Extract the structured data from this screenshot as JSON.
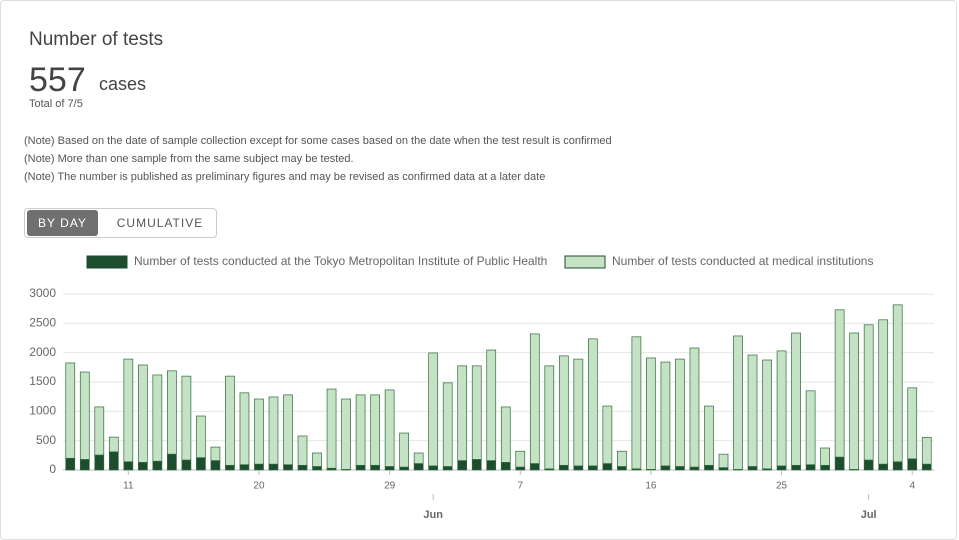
{
  "header": {
    "title": "Number of tests",
    "total": 557,
    "unit": "cases",
    "date_note": "Total of 7/5"
  },
  "notes": [
    "(Note) Based on the date of sample collection except for some cases based on the date when the test result is confirmed",
    "(Note) More than one sample from the same subject may be tested.",
    "(Note) The number is published as preliminary figures and may be revised as confirmed data at a later date"
  ],
  "toggle": [
    "BY DAY",
    "CUMULATIVE"
  ],
  "chart_data": {
    "type": "stacked_bar",
    "categories": [
      null,
      null,
      null,
      null,
      "11",
      null,
      null,
      null,
      null,
      null,
      null,
      null,
      null,
      "20",
      null,
      null,
      null,
      null,
      null,
      null,
      null,
      null,
      "29",
      null,
      null,
      null,
      null,
      null,
      null,
      null,
      null,
      "7",
      null,
      null,
      null,
      null,
      null,
      null,
      null,
      null,
      "16",
      null,
      null,
      null,
      null,
      null,
      null,
      null,
      null,
      "25",
      null,
      null,
      null,
      null,
      null,
      null,
      null,
      null,
      "4",
      null
    ],
    "months": [
      null,
      null,
      null,
      null,
      null,
      null,
      null,
      null,
      null,
      null,
      null,
      null,
      null,
      null,
      null,
      null,
      null,
      null,
      null,
      null,
      null,
      null,
      null,
      null,
      null,
      "Jun",
      null,
      null,
      null,
      null,
      null,
      null,
      null,
      null,
      null,
      null,
      null,
      null,
      null,
      null,
      null,
      null,
      null,
      null,
      null,
      null,
      null,
      null,
      null,
      null,
      null,
      null,
      null,
      null,
      null,
      "Jul",
      null,
      null,
      null,
      null
    ],
    "series": [
      {
        "name": "Number of tests conducted at the Tokyo Metropolitan Institute of Public Health",
        "color": "#1b4d2e",
        "values": [
          200,
          180,
          255,
          310,
          140,
          130,
          150,
          270,
          170,
          210,
          160,
          80,
          90,
          100,
          100,
          90,
          80,
          60,
          30,
          10,
          80,
          80,
          60,
          50,
          110,
          70,
          60,
          160,
          180,
          160,
          130,
          50,
          110,
          20,
          80,
          70,
          70,
          110,
          60,
          20,
          10,
          70,
          60,
          50,
          80,
          40,
          10,
          60,
          20,
          70,
          80,
          90,
          80,
          220,
          10,
          170,
          100,
          140,
          190,
          100
        ]
      },
      {
        "name": "Number of tests conducted at medical institutions",
        "color": "#c5e3c4",
        "values": [
          1625,
          1490,
          820,
          250,
          1750,
          1660,
          1470,
          1420,
          1430,
          710,
          230,
          1520,
          1225,
          1110,
          1145,
          1190,
          500,
          230,
          1350,
          1200,
          1200,
          1200,
          1305,
          580,
          180,
          1925,
          1425,
          1615,
          1595,
          1885,
          945,
          270,
          2210,
          1755,
          1865,
          1820,
          2165,
          980,
          260,
          2250,
          1900,
          1770,
          1830,
          2030,
          1010,
          230,
          2275,
          1900,
          1855,
          1960,
          2255,
          1260,
          295,
          2510,
          2325,
          2305,
          2460,
          2675,
          1210,
          457
        ]
      }
    ],
    "ylim": [
      0,
      3000
    ],
    "yticks": [
      0,
      500,
      1000,
      1500,
      2000,
      2500,
      3000
    ],
    "grid": true
  }
}
